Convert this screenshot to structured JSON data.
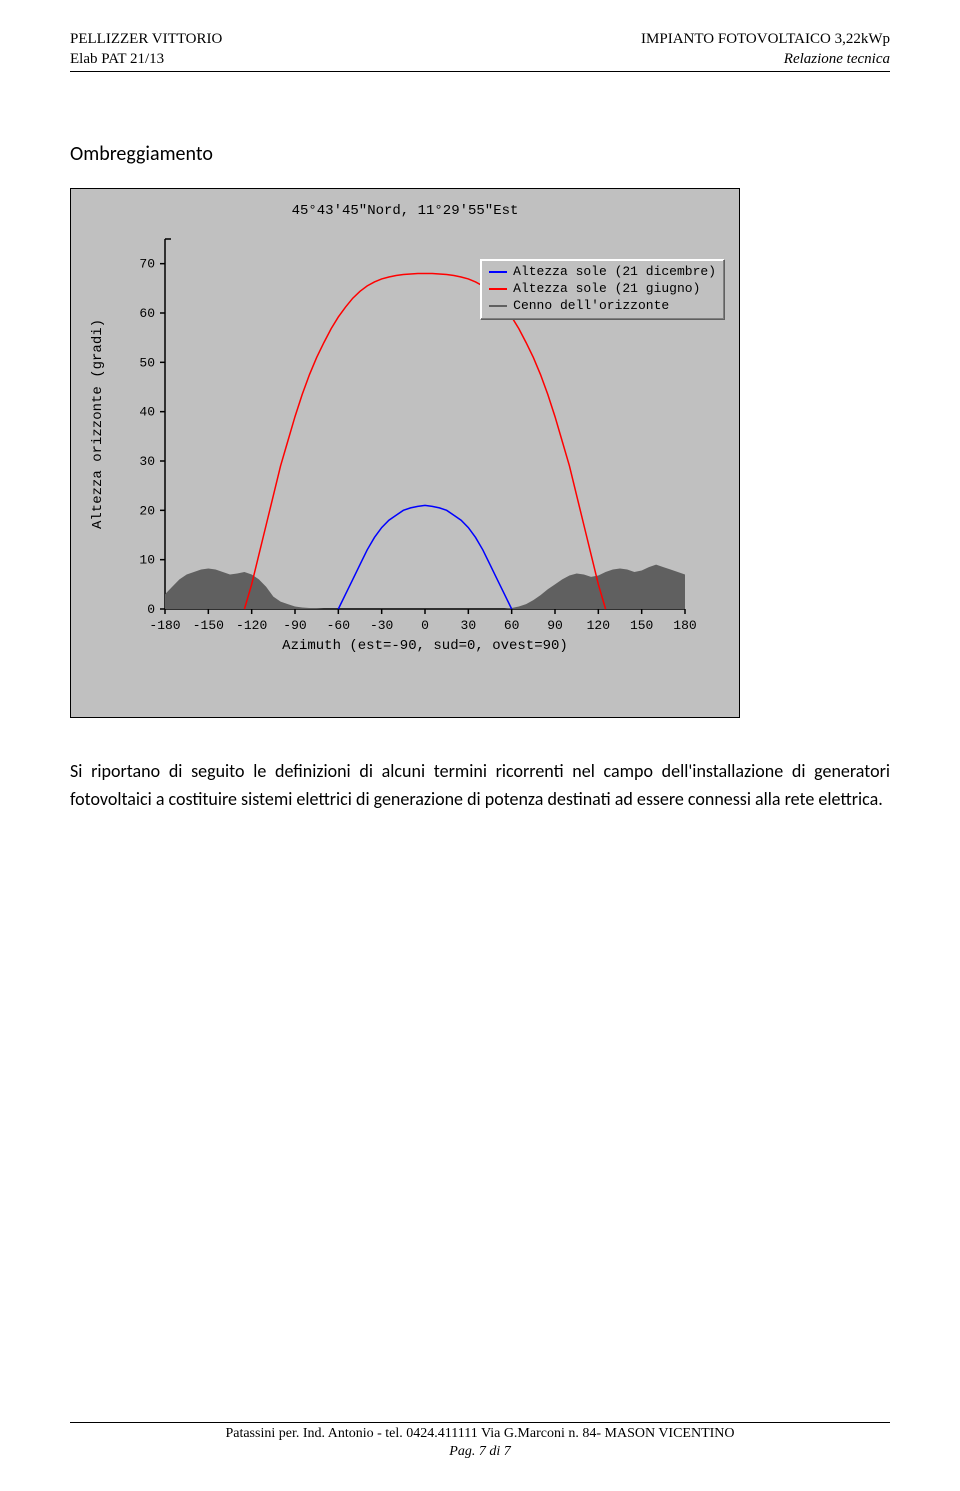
{
  "header": {
    "left_line1": "PELLIZZER VITTORIO",
    "left_line2": "Elab PAT 21/13",
    "right_line1": "IMPIANTO FOTOVOLTAICO 3,22kWp",
    "right_line2": "Relazione tecnica"
  },
  "section_title": "Ombreggiamento",
  "chart": {
    "title": "45°43'45\"Nord, 11°29'55\"Est",
    "background_color": "#c0c0c0",
    "border_color": "#000000",
    "xlabel": "Azimuth (est=-90, sud=0, ovest=90)",
    "ylabel": "Altezza orizzonte (gradi)",
    "xlim": [
      -180,
      180
    ],
    "ylim": [
      0,
      75
    ],
    "xticks": [
      -180,
      -150,
      -120,
      -90,
      -60,
      -30,
      0,
      30,
      60,
      90,
      120,
      150,
      180
    ],
    "yticks": [
      0,
      10,
      20,
      30,
      40,
      50,
      60,
      70
    ],
    "font_family": "Courier New",
    "tick_fontsize": 13,
    "title_fontsize": 14,
    "legend": {
      "items": [
        {
          "label": "Altezza sole (21 dicembre)",
          "color": "#0000ff"
        },
        {
          "label": "Altezza sole (21 giugno)",
          "color": "#ff0000"
        },
        {
          "label": "Cenno dell'orizzonte",
          "color": "#606060"
        }
      ],
      "position": "upper-right"
    },
    "series": [
      {
        "name": "dec",
        "type": "line",
        "color": "#0000ff",
        "line_width": 1.5,
        "x": [
          -60,
          -55,
          -50,
          -45,
          -40,
          -35,
          -30,
          -25,
          -20,
          -15,
          -10,
          -5,
          0,
          5,
          10,
          15,
          20,
          25,
          30,
          35,
          40,
          45,
          50,
          55,
          60
        ],
        "y": [
          0,
          3,
          6,
          9,
          12,
          14.5,
          16.5,
          18,
          19,
          20,
          20.5,
          20.8,
          21,
          20.8,
          20.5,
          20,
          19,
          18,
          16.5,
          14.5,
          12,
          9,
          6,
          3,
          0
        ]
      },
      {
        "name": "jun",
        "type": "line",
        "color": "#ff0000",
        "line_width": 1.5,
        "x": [
          -125,
          -120,
          -115,
          -110,
          -105,
          -100,
          -95,
          -90,
          -85,
          -80,
          -75,
          -70,
          -65,
          -60,
          -55,
          -50,
          -45,
          -40,
          -35,
          -30,
          -25,
          -20,
          -15,
          -10,
          -5,
          0,
          5,
          10,
          15,
          20,
          25,
          30,
          35,
          40,
          45,
          50,
          55,
          60,
          65,
          70,
          75,
          80,
          85,
          90,
          95,
          100,
          105,
          110,
          115,
          120,
          125
        ],
        "y": [
          0,
          5,
          11,
          17,
          23,
          29,
          34,
          39,
          43.5,
          47.5,
          51,
          54,
          56.8,
          59.2,
          61.2,
          63,
          64.4,
          65.5,
          66.3,
          66.9,
          67.3,
          67.6,
          67.8,
          67.9,
          68,
          68,
          68,
          67.9,
          67.8,
          67.6,
          67.3,
          66.9,
          66.3,
          65.5,
          64.4,
          63,
          61.2,
          59.2,
          56.8,
          54,
          51,
          47.5,
          43.5,
          39,
          34,
          29,
          23,
          17,
          11,
          5,
          0
        ]
      },
      {
        "name": "horizon",
        "type": "area",
        "fill_color": "#606060",
        "line_color": "#606060",
        "x": [
          -180,
          -175,
          -170,
          -165,
          -160,
          -155,
          -150,
          -145,
          -140,
          -135,
          -130,
          -125,
          -120,
          -115,
          -110,
          -105,
          -100,
          -95,
          -90,
          -85,
          -80,
          -75,
          -70,
          -65,
          -60,
          -55,
          -50,
          -45,
          -40,
          -35,
          -30,
          -25,
          -20,
          -15,
          -10,
          -5,
          0,
          5,
          10,
          15,
          20,
          25,
          30,
          35,
          40,
          45,
          50,
          55,
          60,
          65,
          70,
          75,
          80,
          85,
          90,
          95,
          100,
          105,
          110,
          115,
          120,
          125,
          130,
          135,
          140,
          145,
          150,
          155,
          160,
          165,
          170,
          175,
          180
        ],
        "y": [
          3,
          4.5,
          6,
          7,
          7.5,
          8,
          8.2,
          8,
          7.5,
          7,
          7.2,
          7.5,
          7,
          6,
          4.5,
          2.5,
          1.5,
          1,
          0.5,
          0.3,
          0.2,
          0.1,
          0,
          0,
          0,
          0,
          0,
          0,
          0,
          0,
          0,
          0,
          0,
          0,
          0,
          0,
          0,
          0,
          0,
          0,
          0,
          0,
          0,
          0,
          0,
          0,
          0,
          0,
          0.2,
          0.5,
          1,
          1.8,
          2.8,
          4,
          5,
          6,
          6.8,
          7.2,
          7,
          6.5,
          6.8,
          7.5,
          8,
          8.2,
          8,
          7.5,
          7.8,
          8.5,
          9,
          8.5,
          8,
          7.5,
          7
        ]
      }
    ]
  },
  "body_paragraph": "Si riportano di seguito le definizioni di alcuni termini ricorrenti nel campo dell'installazione di generatori fotovoltaici a costituire sistemi elettrici di generazione di potenza destinati ad essere connessi alla rete elettrica.",
  "footer": {
    "line1": "Patassini per. Ind. Antonio - tel. 0424.411111 Via G.Marconi n. 84- MASON VICENTINO",
    "line2": "Pag. 7 di 7"
  }
}
